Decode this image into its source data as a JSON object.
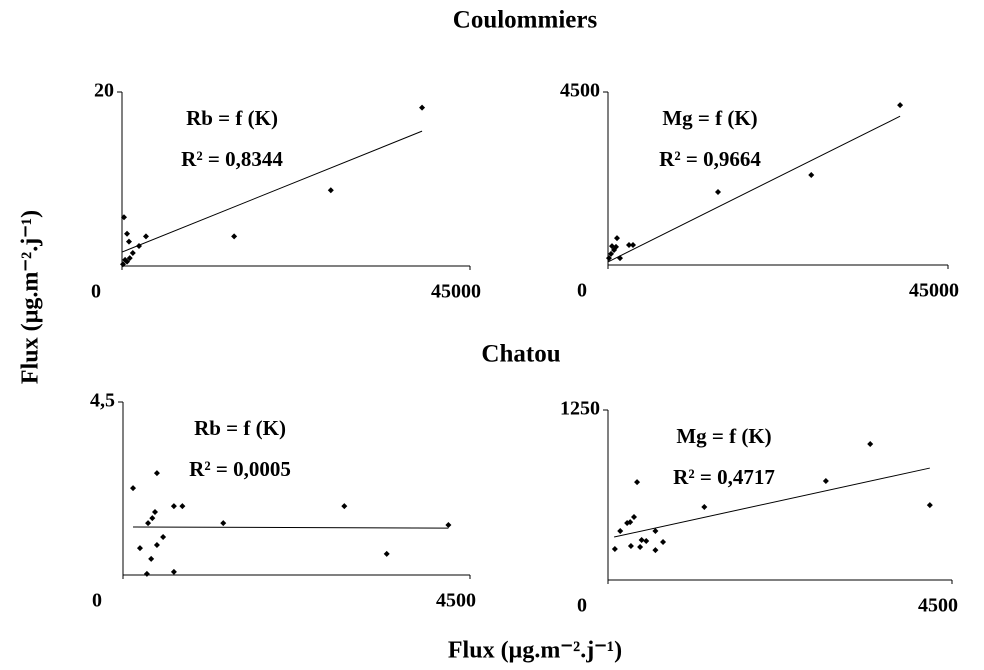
{
  "sections": [
    "Coulommiers",
    "Chatou"
  ],
  "xlabel": "Flux (µg.m⁻².j⁻¹)",
  "ylabel": "Flux (µg.m⁻².j⁻¹)",
  "chart_data": [
    {
      "type": "scatter",
      "annotations": [
        "Rb = f (K)",
        "R² = 0,8344"
      ],
      "color": "#000000",
      "xlim": [
        0,
        45000
      ],
      "ylim": [
        0,
        20
      ],
      "xticks": [
        0,
        45000
      ],
      "yticks": [
        20
      ],
      "x": [
        38800,
        27000,
        14500,
        3100,
        2200,
        260,
        650,
        900,
        1400,
        1000,
        400,
        130,
        650
      ],
      "values": [
        18.2,
        8.7,
        3.4,
        3.4,
        2.3,
        5.6,
        3.7,
        2.8,
        1.5,
        0.9,
        0.7,
        0.2,
        0.5
      ],
      "trendline": {
        "x": [
          0,
          38800
        ],
        "y": [
          1.6,
          15.5
        ]
      }
    },
    {
      "type": "scatter",
      "annotations": [
        "Mg = f (K)",
        "R² = 0,9664"
      ],
      "color": "#000000",
      "xlim": [
        0,
        45000
      ],
      "ylim": [
        0,
        4500
      ],
      "xticks": [
        0,
        45000
      ],
      "yticks": [
        4500
      ],
      "x": [
        38660,
        26900,
        14560,
        1190,
        530,
        2780,
        1590,
        3310,
        800,
        400,
        130,
        1060
      ],
      "values": [
        4160,
        2340,
        1900,
        700,
        490,
        520,
        180,
        520,
        390,
        290,
        180,
        470
      ],
      "trendline": {
        "x": [
          0,
          38660
        ],
        "y": [
          80,
          3870
        ]
      }
    },
    {
      "type": "scatter",
      "annotations": [
        "Rb = f (K)",
        "R² = 0,0005"
      ],
      "color": "#000000",
      "xlim": [
        0,
        4500
      ],
      "ylim": [
        0,
        4.5
      ],
      "xticks": [
        0,
        4500
      ],
      "yticks": [
        {
          "value": 4.5,
          "label": "4,5"
        }
      ],
      "x": [
        130,
        440,
        660,
        770,
        325,
        380,
        415,
        1300,
        2870,
        4220,
        3420,
        220,
        520,
        440,
        365,
        310,
        660
      ],
      "values": [
        2.26,
        2.65,
        1.79,
        1.79,
        1.35,
        1.48,
        1.64,
        1.35,
        1.79,
        1.3,
        0.55,
        0.7,
        0.99,
        0.78,
        0.42,
        0.03,
        0.08
      ],
      "trendline": {
        "x": [
          130,
          4220
        ],
        "y": [
          1.25,
          1.22
        ]
      }
    },
    {
      "type": "scatter",
      "annotations": [
        "Mg = f (K)",
        "R² = 0,4717"
      ],
      "color": "#000000",
      "xlim": [
        0,
        4500
      ],
      "ylim": [
        0,
        1250
      ],
      "xticks": [
        0,
        4500
      ],
      "yticks": [
        1250
      ],
      "x": [
        3430,
        4210,
        2850,
        1260,
        380,
        340,
        290,
        250,
        160,
        90,
        300,
        420,
        440,
        500,
        620,
        720,
        620
      ],
      "values": [
        1000,
        551,
        728,
        537,
        720,
        463,
        426,
        419,
        360,
        228,
        250,
        243,
        294,
        287,
        360,
        279,
        220
      ],
      "trendline": {
        "x": [
          80,
          4210
        ],
        "y": [
          316,
          823
        ]
      }
    }
  ]
}
